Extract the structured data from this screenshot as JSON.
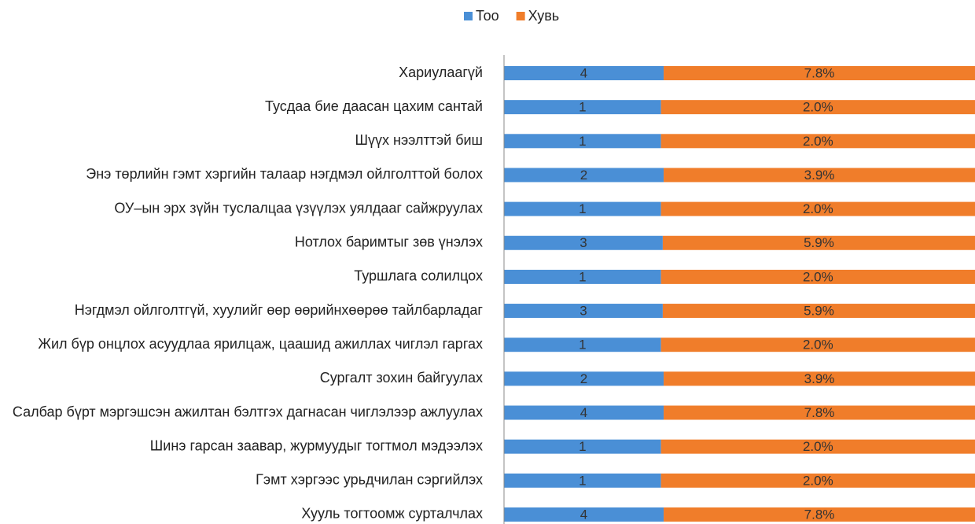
{
  "chart_data": {
    "type": "bar_stacked_100",
    "categories": [
      "Хариулаагүй",
      "Тусдаа бие даасан цахим сантай",
      "Шүүх нээлттэй биш",
      "Энэ төрлийн гэмт хэргийн талаар нэгдмэл ойлголттой болох",
      "ОУ–ын эрх зүйн туслалцаа үзүүлэх уялдааг сайжруулах",
      "Нотлох баримтыг зөв үнэлэх",
      "Туршлага солилцох",
      "Нэгдмэл ойлголтгүй, хуулийг өөр өөрийнхөөрөө тайлбарладаг",
      "Жил бүр онцлох асуудлаа ярилцаж, цаашид ажиллах чиглэл гаргах",
      "Сургалт зохин байгуулах",
      "Салбар бүрт мэргэшсэн ажилтан бэлтгэх дагнасан чиглэлээр ажлуулах",
      "Шинэ гарсан заавар, журмуудыг тогтмол мэдээлэх",
      "Гэмт хэргээс урьдчилан сэргийлэх",
      "Хууль тогтоомж сурталчлах"
    ],
    "series": [
      {
        "name": "Тоо",
        "color": "#4a8fd6",
        "values": [
          4,
          1,
          1,
          2,
          1,
          3,
          1,
          3,
          1,
          2,
          4,
          1,
          1,
          4
        ]
      },
      {
        "name": "Хувь",
        "color": "#f07d2a",
        "values": [
          7.8,
          2.0,
          2.0,
          3.9,
          2.0,
          5.9,
          2.0,
          5.9,
          2.0,
          3.9,
          7.8,
          2.0,
          2.0,
          7.8
        ],
        "value_labels": [
          "7.8%",
          "2.0%",
          "2.0%",
          "3.9%",
          "2.0%",
          "5.9%",
          "2.0%",
          "5.9%",
          "2.0%",
          "3.9%",
          "7.8%",
          "2.0%",
          "2.0%",
          "7.8%"
        ]
      }
    ],
    "legend": "top"
  }
}
